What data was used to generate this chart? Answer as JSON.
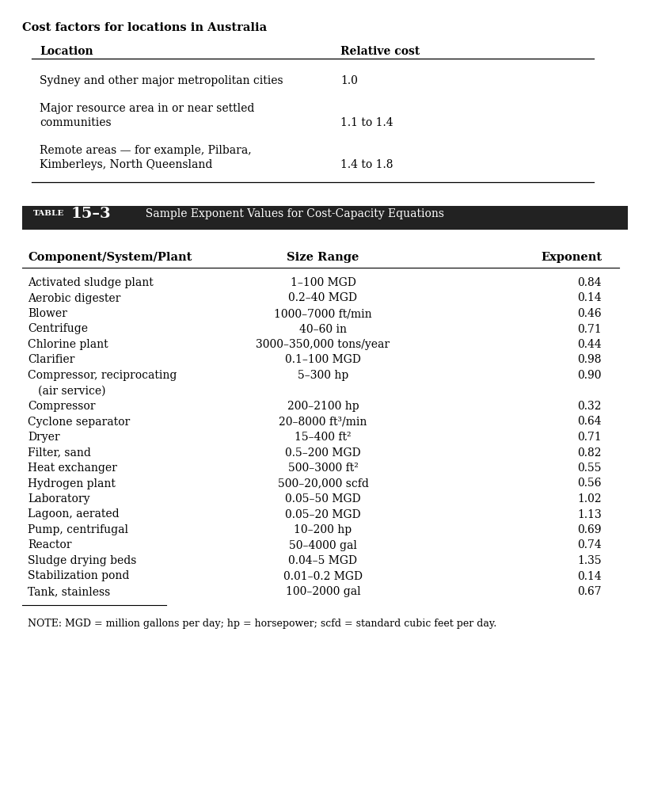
{
  "bg_color": "#ffffff",
  "top_title": "Cost factors for locations in Australia",
  "top_table_headers": [
    "Location",
    "Relative cost"
  ],
  "top_table_rows": [
    [
      "Sydney and other major metropolitan cities",
      "1.0"
    ],
    [
      "Major resource area in or near settled",
      ""
    ],
    [
      "communities",
      "1.1 to 1.4"
    ],
    [
      "Remote areas — for example, Pilbara,",
      ""
    ],
    [
      "Kimberleys, North Queensland",
      "1.4 to 1.8"
    ]
  ],
  "table_label": "TABLE",
  "table_number": "15–3",
  "table_title": "  Sample Exponent Values for Cost-Capacity Equations",
  "bottom_headers": [
    "Component/System/Plant",
    "Size Range",
    "Exponent"
  ],
  "bottom_rows": [
    [
      "Activated sludge plant",
      "1–100 MGD",
      "0.84"
    ],
    [
      "Aerobic digester",
      "0.2–40 MGD",
      "0.14"
    ],
    [
      "Blower",
      "1000–7000 ft/min",
      "0.46"
    ],
    [
      "Centrifuge",
      "40–60 in",
      "0.71"
    ],
    [
      "Chlorine plant",
      "3000–350,000 tons/year",
      "0.44"
    ],
    [
      "Clarifier",
      "0.1–100 MGD",
      "0.98"
    ],
    [
      "Compressor, reciprocating",
      "5–300 hp",
      "0.90"
    ],
    [
      "   (air service)",
      "",
      ""
    ],
    [
      "Compressor",
      "200–2100 hp",
      "0.32"
    ],
    [
      "Cyclone separator",
      "20–8000 ft³/min",
      "0.64"
    ],
    [
      "Dryer",
      "15–400 ft²",
      "0.71"
    ],
    [
      "Filter, sand",
      "0.5–200 MGD",
      "0.82"
    ],
    [
      "Heat exchanger",
      "500–3000 ft²",
      "0.55"
    ],
    [
      "Hydrogen plant",
      "500–20,000 scfd",
      "0.56"
    ],
    [
      "Laboratory",
      "0.05–50 MGD",
      "1.02"
    ],
    [
      "Lagoon, aerated",
      "0.05–20 MGD",
      "1.13"
    ],
    [
      "Pump, centrifugal",
      "10–200 hp",
      "0.69"
    ],
    [
      "Reactor",
      "50–4000 gal",
      "0.74"
    ],
    [
      "Sludge drying beds",
      "0.04–5 MGD",
      "1.35"
    ],
    [
      "Stabilization pond",
      "0.01–0.2 MGD",
      "0.14"
    ],
    [
      "Tank, stainless",
      "100–2000 gal",
      "0.67"
    ]
  ],
  "note": "NOTE: MGD = million gallons per day; hp = horsepower; scfd = standard cubic feet per day."
}
